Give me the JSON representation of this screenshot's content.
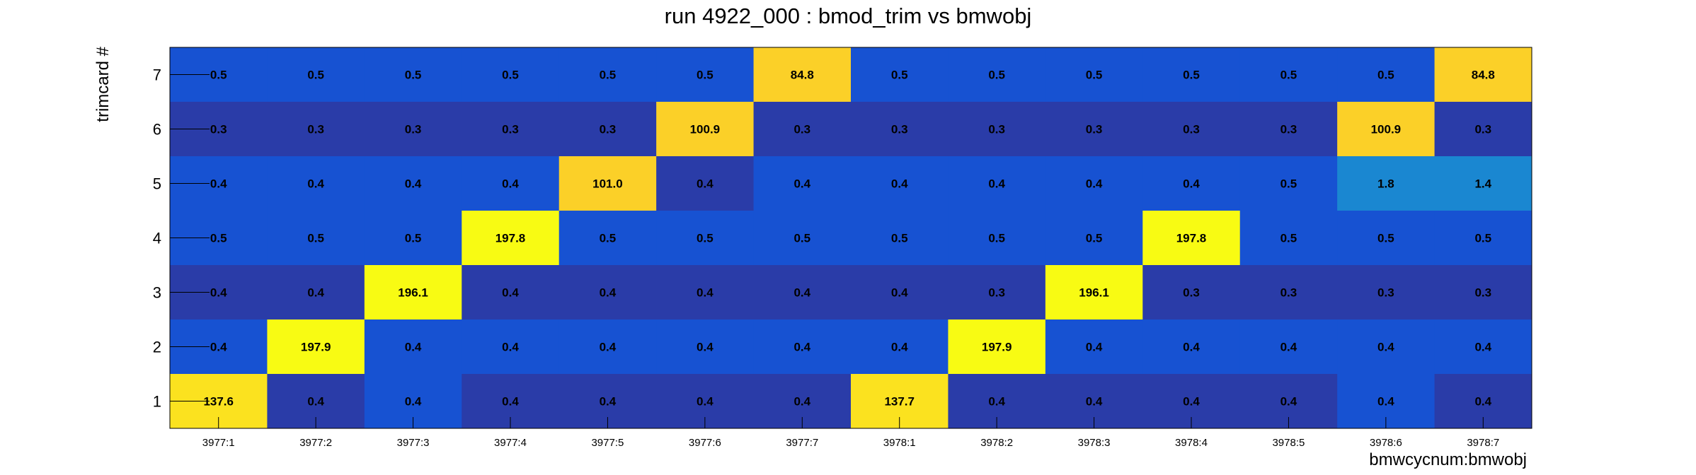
{
  "chart_data": {
    "type": "heatmap",
    "title": "run 4922_000 : bmod_trim vs bmwobj",
    "xlabel": "bmwcycnum:bmwobj",
    "ylabel": "trimcard #",
    "x_categories": [
      "3977:1",
      "3977:2",
      "3977:3",
      "3977:4",
      "3977:5",
      "3977:6",
      "3977:7",
      "3978:1",
      "3978:2",
      "3978:3",
      "3978:4",
      "3978:5",
      "3978:6",
      "3978:7"
    ],
    "y_categories": [
      "1",
      "2",
      "3",
      "4",
      "5",
      "6",
      "7"
    ],
    "rows": [
      {
        "y": "7",
        "values": [
          0.5,
          0.5,
          0.5,
          0.5,
          0.5,
          0.5,
          84.8,
          0.5,
          0.5,
          0.5,
          0.5,
          0.5,
          0.5,
          84.8
        ]
      },
      {
        "y": "6",
        "values": [
          0.3,
          0.3,
          0.3,
          0.3,
          0.3,
          100.9,
          0.3,
          0.3,
          0.3,
          0.3,
          0.3,
          0.3,
          100.9,
          0.3
        ]
      },
      {
        "y": "5",
        "values": [
          0.4,
          0.4,
          0.4,
          0.4,
          101.0,
          0.4,
          0.4,
          0.4,
          0.4,
          0.4,
          0.4,
          0.5,
          1.8,
          1.4
        ]
      },
      {
        "y": "4",
        "values": [
          0.5,
          0.5,
          0.5,
          197.8,
          0.5,
          0.5,
          0.5,
          0.5,
          0.5,
          0.5,
          197.8,
          0.5,
          0.5,
          0.5
        ]
      },
      {
        "y": "3",
        "values": [
          0.4,
          0.4,
          196.1,
          0.4,
          0.4,
          0.4,
          0.4,
          0.4,
          0.3,
          196.1,
          0.3,
          0.3,
          0.3,
          0.3
        ]
      },
      {
        "y": "2",
        "values": [
          0.4,
          197.9,
          0.4,
          0.4,
          0.4,
          0.4,
          0.4,
          0.4,
          197.9,
          0.4,
          0.4,
          0.4,
          0.4,
          0.4
        ]
      },
      {
        "y": "1",
        "values": [
          137.6,
          0.4,
          0.4,
          0.4,
          0.4,
          0.4,
          0.4,
          137.7,
          0.4,
          0.4,
          0.4,
          0.4,
          0.4,
          0.4
        ]
      }
    ],
    "colors": {
      "dark_blue": "#2a3ca8",
      "medium_blue": "#1752d2",
      "cyan": "#1a87d1",
      "orange_yellow": "#fbd028",
      "yellow_gold": "#fbe21f",
      "bright_yellow": "#f8fb13"
    },
    "grid": false,
    "legend": "none"
  }
}
